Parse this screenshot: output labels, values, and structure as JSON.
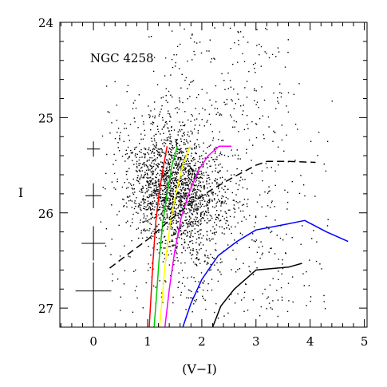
{
  "chart_data": {
    "type": "scatter",
    "title": "",
    "annotation": "NGC 4258",
    "xlabel": "(V−I)",
    "ylabel": "I",
    "xlim": [
      -0.62,
      5.05
    ],
    "ylim": [
      27.2,
      24.0
    ],
    "y_inverted": true,
    "grid": false,
    "x_ticks": [
      0,
      1,
      2,
      3,
      4,
      5
    ],
    "y_ticks": [
      24,
      25,
      26,
      27
    ],
    "scatter": {
      "description": "dense cloud of stars, highest density near (V-I)=1.5, I=25.7",
      "approx_count": 2600,
      "core_center": [
        1.5,
        25.75
      ],
      "core_spread": [
        0.45,
        0.32
      ],
      "color": "#000000"
    },
    "error_bars": [
      {
        "x": 0.0,
        "y": 25.33,
        "xerr": 0.12,
        "yerr": 0.08
      },
      {
        "x": 0.0,
        "y": 25.82,
        "xerr": 0.15,
        "yerr": 0.13
      },
      {
        "x": 0.0,
        "y": 26.32,
        "xerr": 0.22,
        "yerr": 0.18
      },
      {
        "x": 0.0,
        "y": 26.82,
        "xerr": 0.33,
        "yerr": 0.3
      }
    ],
    "series": [
      {
        "color": "#ff0000",
        "style": "solid",
        "x": [
          1.03,
          1.06,
          1.1,
          1.15,
          1.21,
          1.28,
          1.36
        ],
        "y": [
          27.2,
          26.9,
          26.5,
          26.1,
          25.8,
          25.55,
          25.3
        ]
      },
      {
        "color": "#00cc00",
        "style": "solid",
        "x": [
          1.12,
          1.16,
          1.21,
          1.28,
          1.36,
          1.45,
          1.55
        ],
        "y": [
          27.2,
          26.9,
          26.5,
          26.1,
          25.8,
          25.5,
          25.3
        ]
      },
      {
        "color": "#ffff00",
        "style": "solid",
        "x": [
          1.22,
          1.27,
          1.33,
          1.42,
          1.52,
          1.65,
          1.78
        ],
        "y": [
          27.2,
          26.9,
          26.5,
          26.1,
          25.8,
          25.5,
          25.3
        ]
      },
      {
        "color": "#ff00ff",
        "style": "solid",
        "x": [
          1.32,
          1.4,
          1.5,
          1.62,
          1.76,
          1.94,
          2.12,
          2.32,
          2.55
        ],
        "y": [
          27.2,
          26.8,
          26.4,
          26.05,
          25.8,
          25.55,
          25.4,
          25.3,
          25.3
        ]
      },
      {
        "color": "#0000ff",
        "style": "solid",
        "x": [
          1.65,
          1.8,
          2.0,
          2.3,
          2.65,
          3.0,
          3.55,
          3.9,
          4.3,
          4.7
        ],
        "y": [
          27.2,
          26.95,
          26.7,
          26.45,
          26.3,
          26.18,
          26.12,
          26.08,
          26.2,
          26.3
        ]
      },
      {
        "color": "#000000",
        "style": "solid",
        "x": [
          2.2,
          2.35,
          2.6,
          3.0,
          3.6,
          3.85
        ],
        "y": [
          27.2,
          26.98,
          26.8,
          26.6,
          26.57,
          26.53
        ]
      },
      {
        "color": "#000000",
        "style": "dashed",
        "x": [
          0.3,
          0.6,
          1.0,
          1.4,
          1.8,
          2.2,
          2.6,
          3.0,
          3.2,
          3.6,
          4.1
        ],
        "y": [
          26.58,
          26.45,
          26.28,
          26.08,
          25.9,
          25.75,
          25.62,
          25.5,
          25.46,
          25.46,
          25.47
        ]
      }
    ]
  }
}
